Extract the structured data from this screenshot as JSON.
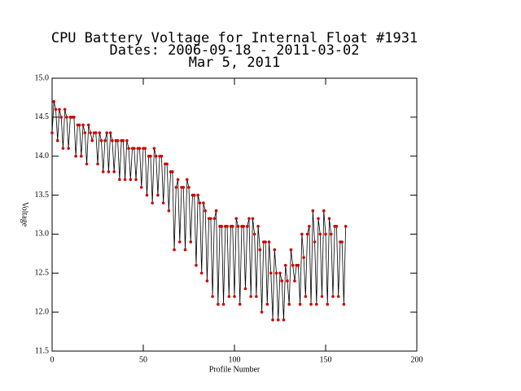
{
  "chart_data": {
    "type": "line",
    "title": [
      "CPU Battery Voltage for Internal Float #1931",
      "Dates:  2006-09-18 -  2011-03-02",
      "Mar  5, 2011"
    ],
    "xlabel": "Profile Number",
    "ylabel": "Voltage",
    "color": "#000000",
    "marker_color": "#cc0000",
    "xlim": [
      0,
      200
    ],
    "xticks": [
      0,
      50,
      100,
      150,
      200
    ],
    "ylim": [
      11.5,
      15.0
    ],
    "yticks": [
      11.5,
      {
        "value": 12,
        "label": "12.0"
      },
      12.5,
      {
        "value": 13,
        "label": "13.0"
      },
      13.5,
      {
        "value": 14,
        "label": "14.0"
      },
      14.5,
      {
        "value": 15,
        "label": "15.0"
      }
    ],
    "x": [
      0,
      1,
      2,
      3,
      4,
      5,
      6,
      7,
      8,
      9,
      10,
      11,
      12,
      13,
      14,
      15,
      16,
      17,
      18,
      19,
      20,
      21,
      22,
      23,
      24,
      25,
      26,
      27,
      28,
      29,
      30,
      31,
      32,
      33,
      34,
      35,
      36,
      37,
      38,
      39,
      40,
      41,
      42,
      43,
      44,
      45,
      46,
      47,
      48,
      49,
      50,
      51,
      52,
      53,
      54,
      55,
      56,
      57,
      58,
      59,
      60,
      61,
      62,
      63,
      64,
      65,
      66,
      67,
      68,
      69,
      70,
      71,
      72,
      73,
      74,
      75,
      76,
      77,
      78,
      79,
      80,
      81,
      82,
      83,
      84,
      85,
      86,
      87,
      88,
      89,
      90,
      91,
      92,
      93,
      94,
      95,
      96,
      97,
      98,
      99,
      100,
      101,
      102,
      103,
      104,
      105,
      106,
      107,
      108,
      109,
      110,
      111,
      112,
      113,
      114,
      115,
      116,
      117,
      118,
      119,
      120,
      121,
      122,
      123,
      124,
      125,
      126,
      127,
      128,
      129,
      130,
      131,
      132,
      133,
      134,
      135,
      136,
      137,
      138,
      139,
      140,
      141,
      142,
      143,
      144,
      145,
      146,
      147,
      148,
      149,
      150,
      151,
      152,
      153,
      154,
      155,
      156,
      157,
      158,
      159,
      160,
      161
    ],
    "values": [
      14.3,
      14.7,
      14.6,
      14.2,
      14.6,
      14.5,
      14.1,
      14.6,
      14.5,
      14.1,
      14.5,
      14.5,
      14.5,
      14.0,
      14.4,
      14.4,
      14.0,
      14.4,
      14.3,
      13.9,
      14.4,
      14.3,
      14.2,
      14.3,
      14.3,
      13.9,
      14.3,
      14.2,
      13.8,
      14.2,
      14.3,
      13.8,
      14.3,
      14.2,
      13.8,
      14.2,
      14.2,
      13.7,
      14.2,
      14.2,
      13.7,
      14.2,
      14.1,
      13.7,
      14.1,
      14.1,
      13.7,
      14.1,
      14.1,
      13.6,
      14.1,
      14.1,
      13.5,
      14.0,
      14.0,
      13.4,
      14.1,
      14.0,
      13.5,
      14.0,
      14.0,
      13.4,
      13.9,
      13.9,
      13.3,
      13.8,
      13.8,
      12.8,
      13.6,
      13.7,
      12.9,
      13.6,
      13.6,
      12.8,
      13.7,
      13.6,
      12.9,
      13.5,
      13.5,
      12.6,
      13.5,
      13.4,
      12.5,
      13.4,
      13.3,
      12.4,
      13.2,
      13.2,
      12.2,
      13.2,
      13.3,
      12.1,
      13.1,
      13.1,
      12.1,
      13.1,
      13.1,
      12.2,
      13.1,
      13.1,
      12.2,
      13.2,
      13.1,
      12.1,
      13.1,
      13.1,
      12.3,
      13.1,
      13.2,
      12.2,
      13.2,
      13.0,
      12.2,
      13.1,
      12.8,
      12.0,
      12.9,
      12.9,
      12.1,
      12.9,
      12.5,
      11.9,
      12.8,
      12.5,
      11.9,
      12.5,
      12.4,
      11.9,
      12.6,
      12.4,
      12.1,
      12.8,
      12.6,
      12.4,
      12.6,
      12.6,
      12.1,
      13.0,
      12.7,
      12.2,
      13.0,
      13.1,
      12.1,
      13.3,
      12.9,
      12.1,
      13.2,
      13.0,
      12.2,
      13.3,
      13.0,
      12.1,
      13.2,
      13.0,
      12.2,
      13.1,
      13.1,
      12.2,
      12.9,
      12.9,
      12.1,
      13.1
    ]
  }
}
